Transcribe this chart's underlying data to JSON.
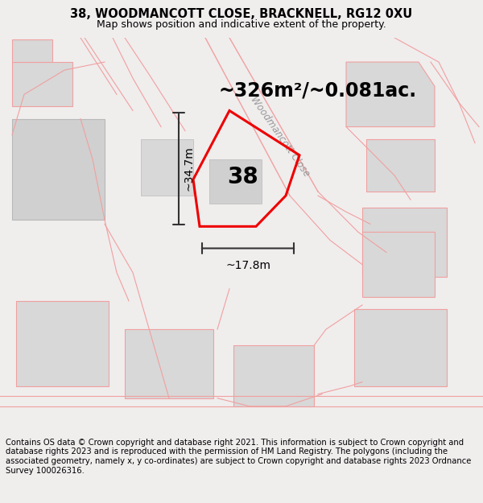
{
  "title": "38, WOODMANCOTT CLOSE, BRACKNELL, RG12 0XU",
  "subtitle": "Map shows position and indicative extent of the property.",
  "area_text": "~326m²/~0.081ac.",
  "label_number": "38",
  "dim_height": "~34.7m",
  "dim_width": "~17.8m",
  "street_name": "Woodmancott Close",
  "footer": "Contains OS data © Crown copyright and database right 2021. This information is subject to Crown copyright and database rights 2023 and is reproduced with the permission of HM Land Registry. The polygons (including the associated geometry, namely x, y co-ordinates) are subject to Crown copyright and database rights 2023 Ordnance Survey 100026316.",
  "bg_color": "#f0eded",
  "map_bg": "#ffffff",
  "plot_line_color": "#ee0000",
  "other_line_color": "#f0a0a0",
  "building_fill": "#d8d8d8",
  "title_fontsize": 10.5,
  "subtitle_fontsize": 9,
  "area_fontsize": 17,
  "label_fontsize": 20,
  "footer_fontsize": 7.2,
  "dim_fontsize": 10,
  "street_fontsize": 8.5
}
